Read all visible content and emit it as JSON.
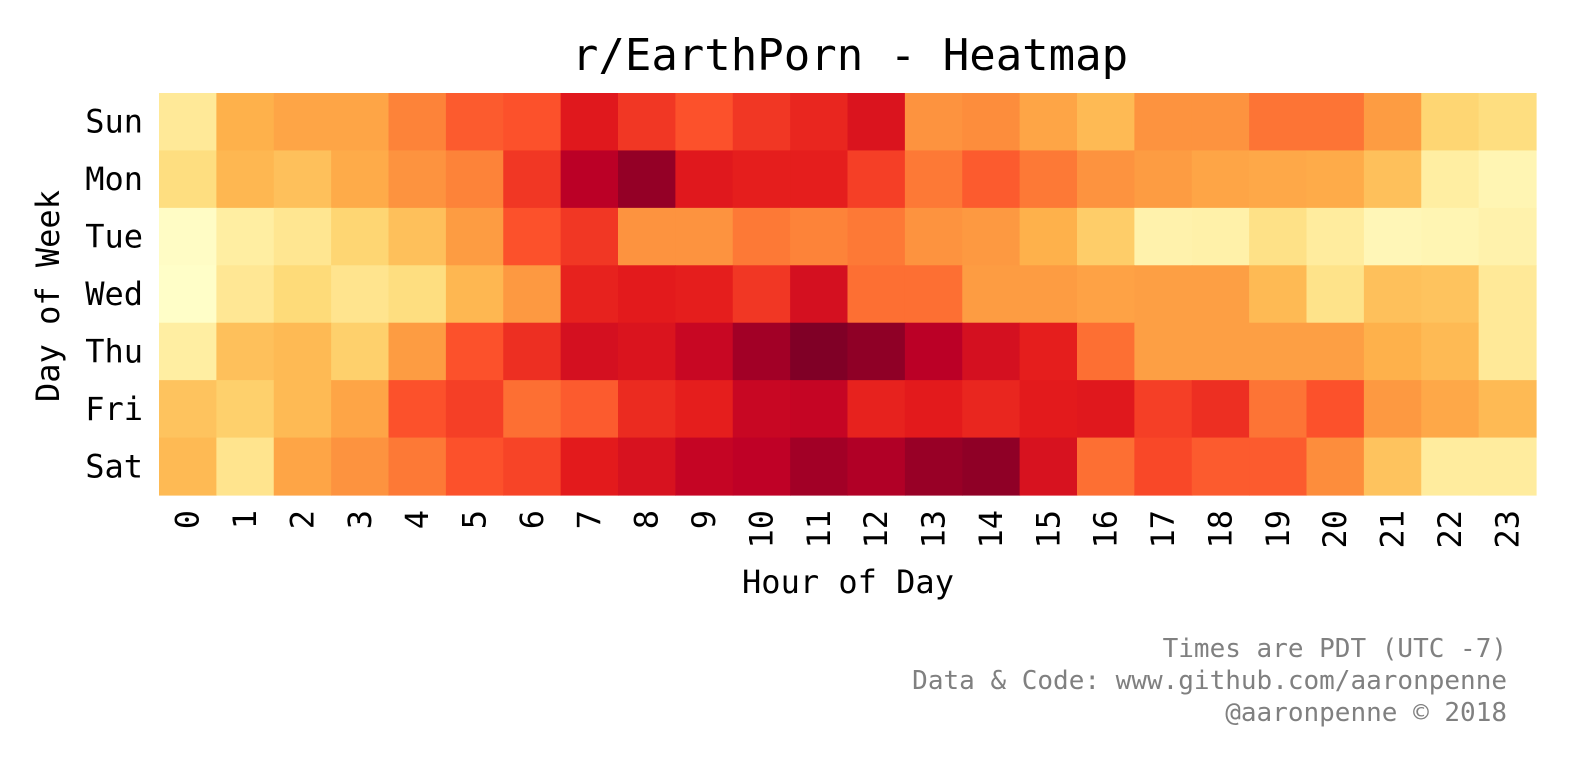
{
  "chart_data": {
    "type": "heatmap",
    "title": "r/EarthPorn - Heatmap",
    "xlabel": "Hour of Day",
    "ylabel": "Day of Week",
    "x_categories": [
      "0",
      "1",
      "2",
      "3",
      "4",
      "5",
      "6",
      "7",
      "8",
      "9",
      "10",
      "11",
      "12",
      "13",
      "14",
      "15",
      "16",
      "17",
      "18",
      "19",
      "20",
      "21",
      "22",
      "23"
    ],
    "y_categories": [
      "Sun",
      "Mon",
      "Tue",
      "Wed",
      "Thu",
      "Fri",
      "Sat"
    ],
    "colormap": "YlOrRd",
    "colorbar": false,
    "grid": false,
    "value_scale": "relative intensity 0-1 (no colorbar shown)",
    "values": [
      [
        0.15,
        0.38,
        0.42,
        0.42,
        0.52,
        0.6,
        0.62,
        0.76,
        0.68,
        0.62,
        0.68,
        0.72,
        0.78,
        0.48,
        0.5,
        0.42,
        0.35,
        0.48,
        0.48,
        0.55,
        0.55,
        0.45,
        0.26,
        0.22
      ],
      [
        0.22,
        0.36,
        0.33,
        0.4,
        0.48,
        0.52,
        0.68,
        0.88,
        0.96,
        0.76,
        0.74,
        0.74,
        0.66,
        0.54,
        0.6,
        0.54,
        0.48,
        0.45,
        0.42,
        0.41,
        0.4,
        0.33,
        0.12,
        0.07
      ],
      [
        0.02,
        0.12,
        0.17,
        0.26,
        0.33,
        0.45,
        0.62,
        0.68,
        0.48,
        0.48,
        0.54,
        0.52,
        0.54,
        0.48,
        0.46,
        0.38,
        0.29,
        0.09,
        0.1,
        0.2,
        0.13,
        0.06,
        0.07,
        0.09
      ],
      [
        0.01,
        0.16,
        0.24,
        0.18,
        0.22,
        0.36,
        0.46,
        0.73,
        0.75,
        0.74,
        0.68,
        0.8,
        0.56,
        0.56,
        0.45,
        0.45,
        0.43,
        0.44,
        0.44,
        0.35,
        0.19,
        0.33,
        0.32,
        0.15
      ],
      [
        0.12,
        0.33,
        0.35,
        0.28,
        0.45,
        0.62,
        0.7,
        0.8,
        0.78,
        0.84,
        0.93,
        1.0,
        0.97,
        0.88,
        0.8,
        0.74,
        0.56,
        0.44,
        0.44,
        0.44,
        0.44,
        0.38,
        0.35,
        0.15
      ],
      [
        0.32,
        0.28,
        0.35,
        0.42,
        0.62,
        0.66,
        0.56,
        0.6,
        0.71,
        0.74,
        0.84,
        0.85,
        0.73,
        0.75,
        0.72,
        0.75,
        0.76,
        0.66,
        0.7,
        0.55,
        0.62,
        0.46,
        0.41,
        0.35
      ],
      [
        0.35,
        0.18,
        0.42,
        0.48,
        0.54,
        0.62,
        0.65,
        0.75,
        0.79,
        0.85,
        0.87,
        0.93,
        0.9,
        0.95,
        0.97,
        0.79,
        0.56,
        0.64,
        0.6,
        0.6,
        0.5,
        0.32,
        0.13,
        0.13
      ]
    ]
  },
  "footer": {
    "line1": "Times are PDT (UTC -7)",
    "line2": "Data & Code: www.github.com/aaronpenne",
    "line3": "@aaronpenne © 2018"
  }
}
